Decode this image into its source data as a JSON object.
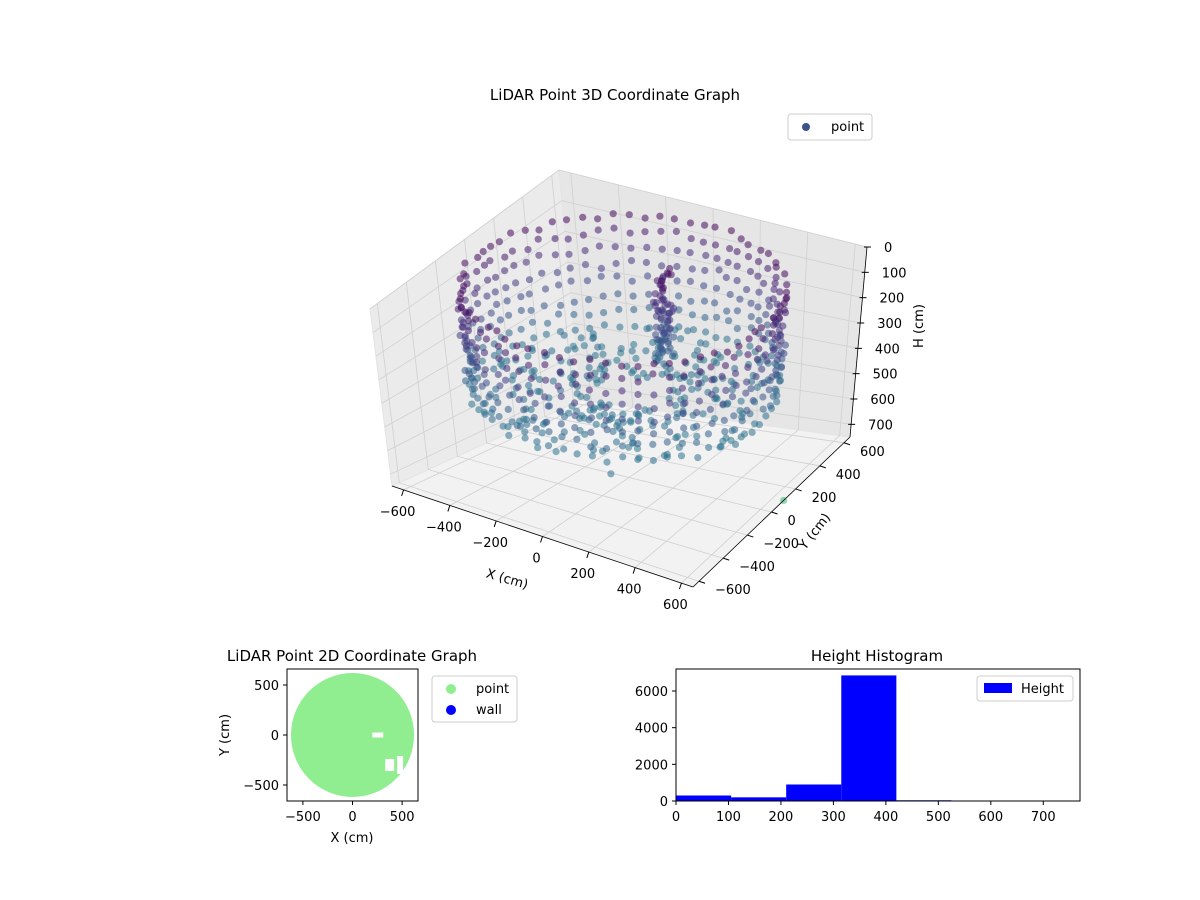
{
  "figure": {
    "background": "#ffffff"
  },
  "chart_data": [
    {
      "type": "scatter",
      "dimensions": 3,
      "title": "LiDAR Point 3D Coordinate Graph",
      "xlabel": "X (cm)",
      "ylabel": "Y (cm)",
      "zlabel": "H (cm)",
      "xlim": [
        -650,
        650
      ],
      "ylim": [
        -650,
        650
      ],
      "zlim": [
        750,
        0
      ],
      "z_axis_inverted": true,
      "xticks": [
        "−600",
        "−400",
        "−200",
        "0",
        "200",
        "400",
        "600"
      ],
      "yticks": [
        "−600",
        "−400",
        "−200",
        "0",
        "200",
        "400",
        "600"
      ],
      "zticks": [
        "0",
        "100",
        "200",
        "300",
        "400",
        "500",
        "600",
        "700"
      ],
      "grid": true,
      "legend": {
        "position": "top-right",
        "entries": [
          {
            "label": "point",
            "color": "#3b528b"
          }
        ]
      },
      "colormap": "viridis",
      "series": [
        {
          "name": "point",
          "description": "dense ring of points around the sensor with a cluster near the center",
          "wall_ring": {
            "radius_cm": 580,
            "h_range_cm": [
              30,
              430
            ]
          },
          "inner_floor": {
            "radius_range_cm": [
              150,
              560
            ],
            "h_cm": 420
          },
          "center_column": {
            "x_cm": 50,
            "y_cm": 200,
            "h_range_cm": [
              20,
              380
            ]
          },
          "outliers": [
            {
              "x": 300,
              "y": -650,
              "h": 400
            },
            {
              "x": 650,
              "y": 100,
              "h": 750
            }
          ]
        }
      ]
    },
    {
      "type": "scatter",
      "dimensions": 2,
      "title": "LiDAR Point 2D Coordinate Graph",
      "xlabel": "X (cm)",
      "ylabel": "Y (cm)",
      "xlim": [
        -660,
        660
      ],
      "ylim": [
        -660,
        660
      ],
      "xticks": [
        -500,
        0,
        500
      ],
      "yticks": [
        -500,
        0,
        500
      ],
      "legend": {
        "position": "outside-right",
        "entries": [
          {
            "label": "point",
            "color": "#90ee90"
          },
          {
            "label": "wall",
            "color": "#0000ff"
          }
        ]
      },
      "series": [
        {
          "name": "point",
          "shape": "filled disc",
          "radius_cm": 620,
          "color": "#90ee90"
        },
        {
          "name": "wall",
          "color": "#0000ff",
          "points": []
        }
      ]
    },
    {
      "type": "bar",
      "subtype": "histogram",
      "title": "Height Histogram",
      "xlim": [
        0,
        770
      ],
      "ylim": [
        0,
        7200
      ],
      "xticks": [
        0,
        100,
        200,
        300,
        400,
        500,
        600,
        700
      ],
      "yticks": [
        0,
        2000,
        4000,
        6000
      ],
      "color": "#0000ff",
      "legend": {
        "position": "top-right",
        "entries": [
          {
            "label": "Height",
            "color": "#0000ff"
          }
        ]
      },
      "bin_edges": [
        0,
        105,
        210,
        315,
        420,
        525,
        630,
        735
      ],
      "values": [
        300,
        200,
        900,
        6850,
        40,
        5,
        2
      ]
    }
  ]
}
